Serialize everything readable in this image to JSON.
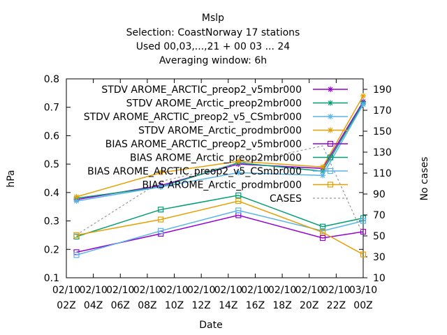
{
  "chart_data": {
    "type": "line",
    "title_lines": [
      "Mslp",
      "Selection: CoastNorway     17 stations",
      "Used  00,03,...,21  + 00 03 ... 24",
      "Averaging window:  6h"
    ],
    "xlabel": "Date",
    "ylabel": "hPa",
    "y2label": "No cases",
    "x_ticks": [
      {
        "x": 0,
        "line1": "02/10",
        "line2": "02Z"
      },
      {
        "x": 2,
        "line1": "02/10",
        "line2": "04Z"
      },
      {
        "x": 4,
        "line1": "02/10",
        "line2": "06Z"
      },
      {
        "x": 6,
        "line1": "02/10",
        "line2": "08Z"
      },
      {
        "x": 8,
        "line1": "02/10",
        "line2": "10Z"
      },
      {
        "x": 10,
        "line1": "02/10",
        "line2": "12Z"
      },
      {
        "x": 12,
        "line1": "02/10",
        "line2": "14Z"
      },
      {
        "x": 14,
        "line1": "02/10",
        "line2": "16Z"
      },
      {
        "x": 16,
        "line1": "02/10",
        "line2": "18Z"
      },
      {
        "x": 18,
        "line1": "02/10",
        "line2": "20Z"
      },
      {
        "x": 20,
        "line1": "02/10",
        "line2": "22Z"
      },
      {
        "x": 22,
        "line1": "03/10",
        "line2": "00Z"
      }
    ],
    "xlim": [
      0,
      22
    ],
    "ylim": [
      0.1,
      0.8
    ],
    "y_ticks": [
      "0.1",
      "0.2",
      "0.3",
      "0.4",
      "0.5",
      "0.6",
      "0.7",
      "0.8"
    ],
    "y2lim": [
      10,
      200
    ],
    "y2_ticks": [
      "10",
      "30",
      "50",
      "70",
      "90",
      "110",
      "130",
      "150",
      "170",
      "190"
    ],
    "x": [
      0.75,
      7,
      12.75,
      19,
      22
    ],
    "series": [
      {
        "name": "STDV AROME_ARCTIC_preop2_v5mbr000",
        "axis": "left",
        "color": "#9400d3",
        "marker": "star",
        "dash": "",
        "values": [
          0.375,
          0.425,
          0.5,
          0.485,
          0.72
        ]
      },
      {
        "name": "STDV AROME_Arctic_preop2mbr000",
        "axis": "left",
        "color": "#009e73",
        "marker": "star",
        "dash": "",
        "values": [
          0.38,
          0.42,
          0.505,
          0.475,
          0.715
        ]
      },
      {
        "name": "STDV AROME_ARCTIC_preop2_v5_CSmbr000",
        "axis": "left",
        "color": "#56b4e9",
        "marker": "star",
        "dash": "",
        "values": [
          0.37,
          0.42,
          0.47,
          0.46,
          0.71
        ]
      },
      {
        "name": "STDV AROME_Arctic_prodmbr000",
        "axis": "left",
        "color": "#e69f00",
        "marker": "star",
        "dash": "",
        "values": [
          0.385,
          0.47,
          0.51,
          0.49,
          0.74
        ]
      },
      {
        "name": "BIAS AROME_ARCTIC_preop2_v5mbr000",
        "axis": "left",
        "color": "#9400d3",
        "marker": "square",
        "dash": "",
        "values": [
          0.19,
          0.255,
          0.32,
          0.24,
          0.262
        ]
      },
      {
        "name": "BIAS AROME_Arctic_preop2mbr000",
        "axis": "left",
        "color": "#009e73",
        "marker": "square",
        "dash": "",
        "values": [
          0.245,
          0.34,
          0.39,
          0.28,
          0.31
        ]
      },
      {
        "name": "BIAS AROME_ARCTIC_preop2_v5_CSmbr000",
        "axis": "left",
        "color": "#56b4e9",
        "marker": "square",
        "dash": "",
        "values": [
          0.18,
          0.265,
          0.337,
          0.265,
          0.3
        ]
      },
      {
        "name": "BIAS AROME_Arctic_prodmbr000",
        "axis": "left",
        "color": "#e69f00",
        "marker": "square",
        "dash": "",
        "values": [
          0.25,
          0.305,
          0.37,
          0.26,
          0.182
        ]
      },
      {
        "name": "CASES",
        "axis": "right",
        "color": "#999999",
        "marker": "none",
        "dash": "3,3",
        "values": [
          51,
          102,
          119,
          136,
          51
        ]
      }
    ],
    "legend_position": "top-right"
  }
}
